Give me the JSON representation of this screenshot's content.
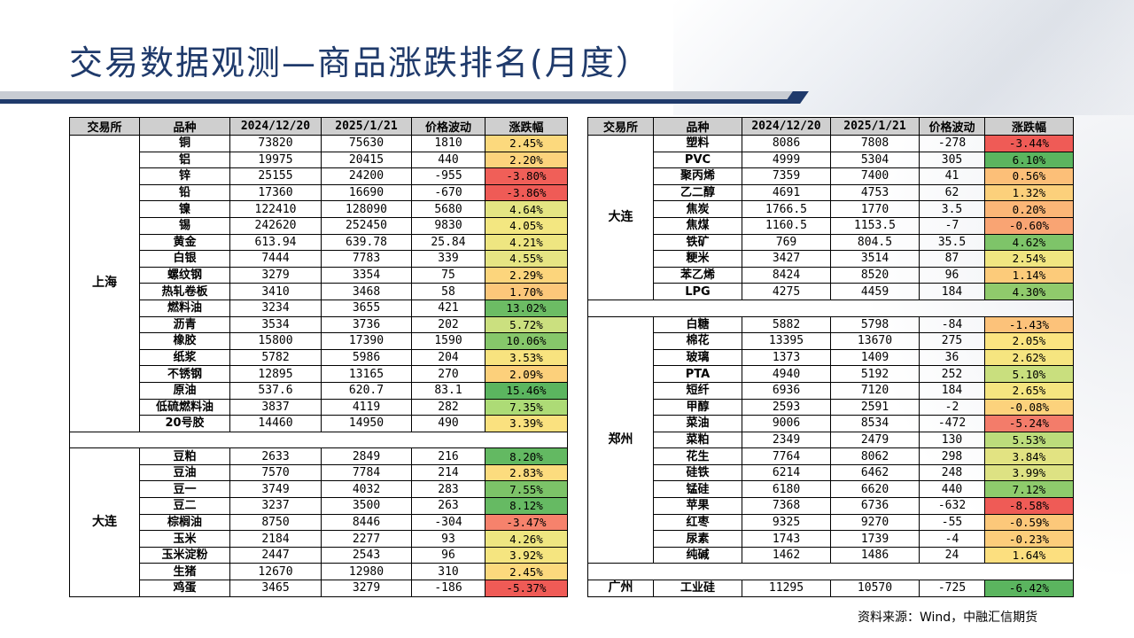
{
  "title": "交易数据观测—商品涨跌排名(月度）",
  "source": "资料来源：Wind，中融汇信期货",
  "headers": [
    "交易所",
    "品种",
    "2024/12/20",
    "2025/1/21",
    "价格波动",
    "涨跌幅"
  ],
  "colors": {
    "strong_green": "#5bb55f",
    "green": "#8ccb6f",
    "light_green": "#c6e08a",
    "yellow": "#fbe983",
    "orange": "#fcc77a",
    "salmon": "#f69a7a",
    "red": "#ef5b56",
    "header_gray": "#cfcfcf",
    "title_blue": "#1f3a6b"
  },
  "left_table": {
    "groups": [
      {
        "exchange": "上海",
        "rows": [
          {
            "name": "铜",
            "d1": "73820",
            "d2": "75630",
            "chg": "1810",
            "pct": "2.45%",
            "color": "#fcd97d"
          },
          {
            "name": "铝",
            "d1": "19975",
            "d2": "20415",
            "chg": "440",
            "pct": "2.20%",
            "color": "#fcd37c"
          },
          {
            "name": "锌",
            "d1": "25155",
            "d2": "24200",
            "chg": "-955",
            "pct": "-3.80%",
            "color": "#f05f58"
          },
          {
            "name": "铅",
            "d1": "17360",
            "d2": "16690",
            "chg": "-670",
            "pct": "-3.86%",
            "color": "#ef5b56"
          },
          {
            "name": "镍",
            "d1": "122410",
            "d2": "128090",
            "chg": "5680",
            "pct": "4.64%",
            "color": "#e4e583"
          },
          {
            "name": "锡",
            "d1": "242620",
            "d2": "252450",
            "chg": "9830",
            "pct": "4.05%",
            "color": "#f3e781"
          },
          {
            "name": "黄金",
            "d1": "613.94",
            "d2": "639.78",
            "chg": "25.84",
            "pct": "4.21%",
            "color": "#eee681"
          },
          {
            "name": "白银",
            "d1": "7444",
            "d2": "7783",
            "chg": "339",
            "pct": "4.55%",
            "color": "#e6e583"
          },
          {
            "name": "螺纹钢",
            "d1": "3279",
            "d2": "3354",
            "chg": "75",
            "pct": "2.29%",
            "color": "#fcd57c"
          },
          {
            "name": "热轧卷板",
            "d1": "3410",
            "d2": "3468",
            "chg": "58",
            "pct": "1.70%",
            "color": "#fcc77a"
          },
          {
            "name": "燃料油",
            "d1": "3234",
            "d2": "3655",
            "chg": "421",
            "pct": "13.02%",
            "color": "#6cbc64"
          },
          {
            "name": "沥青",
            "d1": "3534",
            "d2": "3736",
            "chg": "202",
            "pct": "5.72%",
            "color": "#cbe07f"
          },
          {
            "name": "橡胶",
            "d1": "15800",
            "d2": "17390",
            "chg": "1590",
            "pct": "10.06%",
            "color": "#86c76a"
          },
          {
            "name": "纸浆",
            "d1": "5782",
            "d2": "5986",
            "chg": "204",
            "pct": "3.53%",
            "color": "#f8e37f"
          },
          {
            "name": "不锈钢",
            "d1": "12895",
            "d2": "13165",
            "chg": "270",
            "pct": "2.09%",
            "color": "#fcd07b"
          },
          {
            "name": "原油",
            "d1": "537.6",
            "d2": "620.7",
            "chg": "83.1",
            "pct": "15.46%",
            "color": "#5bb55f"
          },
          {
            "name": "低硫燃料油",
            "d1": "3837",
            "d2": "4119",
            "chg": "282",
            "pct": "7.35%",
            "color": "#addb76"
          },
          {
            "name": "20号胶",
            "d1": "14460",
            "d2": "14950",
            "chg": "490",
            "pct": "3.39%",
            "color": "#fae17f"
          }
        ]
      },
      {
        "exchange": "大连",
        "rows": [
          {
            "name": "豆粕",
            "d1": "2633",
            "d2": "2849",
            "chg": "216",
            "pct": "8.20%",
            "color": "#63b962"
          },
          {
            "name": "豆油",
            "d1": "7570",
            "d2": "7784",
            "chg": "214",
            "pct": "2.83%",
            "color": "#fcdc7e"
          },
          {
            "name": "豆一",
            "d1": "3749",
            "d2": "4032",
            "chg": "283",
            "pct": "7.55%",
            "color": "#7cc368"
          },
          {
            "name": "豆二",
            "d1": "3237",
            "d2": "3500",
            "chg": "263",
            "pct": "8.12%",
            "color": "#66ba63"
          },
          {
            "name": "棕榈油",
            "d1": "8750",
            "d2": "8446",
            "chg": "-304",
            "pct": "-3.47%",
            "color": "#f6826c"
          },
          {
            "name": "玉米",
            "d1": "2184",
            "d2": "2277",
            "chg": "93",
            "pct": "4.26%",
            "color": "#eee681"
          },
          {
            "name": "玉米淀粉",
            "d1": "2447",
            "d2": "2543",
            "chg": "96",
            "pct": "3.92%",
            "color": "#f5e580"
          },
          {
            "name": "生猪",
            "d1": "12670",
            "d2": "12980",
            "chg": "310",
            "pct": "2.45%",
            "color": "#fcd97d"
          },
          {
            "name": "鸡蛋",
            "d1": "3465",
            "d2": "3279",
            "chg": "-186",
            "pct": "-5.37%",
            "color": "#ef5b56"
          }
        ]
      }
    ]
  },
  "right_table": {
    "groups": [
      {
        "exchange": "大连",
        "rows": [
          {
            "name": "塑料",
            "d1": "8086",
            "d2": "7808",
            "chg": "-278",
            "pct": "-3.44%",
            "color": "#ef5b56"
          },
          {
            "name": "PVC",
            "d1": "4999",
            "d2": "5304",
            "chg": "305",
            "pct": "6.10%",
            "color": "#5bb55f"
          },
          {
            "name": "聚丙烯",
            "d1": "7359",
            "d2": "7400",
            "chg": "41",
            "pct": "0.56%",
            "color": "#fcbf78"
          },
          {
            "name": "乙二醇",
            "d1": "4691",
            "d2": "4753",
            "chg": "62",
            "pct": "1.32%",
            "color": "#fcd07b"
          },
          {
            "name": "焦炭",
            "d1": "1766.5",
            "d2": "1770",
            "chg": "3.5",
            "pct": "0.20%",
            "color": "#fbb677"
          },
          {
            "name": "焦煤",
            "d1": "1160.5",
            "d2": "1153.5",
            "chg": "-7",
            "pct": "-0.60%",
            "color": "#f9a473"
          },
          {
            "name": "铁矿",
            "d1": "769",
            "d2": "804.5",
            "chg": "35.5",
            "pct": "4.62%",
            "color": "#7ec469"
          },
          {
            "name": "粳米",
            "d1": "3427",
            "d2": "3514",
            "chg": "87",
            "pct": "2.54%",
            "color": "#f0e681"
          },
          {
            "name": "苯乙烯",
            "d1": "8424",
            "d2": "8520",
            "chg": "96",
            "pct": "1.14%",
            "color": "#fccb7a"
          },
          {
            "name": "LPG",
            "d1": "4275",
            "d2": "4459",
            "chg": "184",
            "pct": "4.30%",
            "color": "#90ca6c"
          }
        ]
      },
      {
        "exchange": "郑州",
        "rows": [
          {
            "name": "白糖",
            "d1": "5882",
            "d2": "5798",
            "chg": "-84",
            "pct": "-1.43%",
            "color": "#fcc27a"
          },
          {
            "name": "棉花",
            "d1": "13395",
            "d2": "13670",
            "chg": "275",
            "pct": "2.05%",
            "color": "#fbe480"
          },
          {
            "name": "玻璃",
            "d1": "1373",
            "d2": "1409",
            "chg": "36",
            "pct": "2.62%",
            "color": "#f6e580"
          },
          {
            "name": "PTA",
            "d1": "4940",
            "d2": "5192",
            "chg": "252",
            "pct": "5.10%",
            "color": "#c9df7e"
          },
          {
            "name": "短纤",
            "d1": "6936",
            "d2": "7120",
            "chg": "184",
            "pct": "2.65%",
            "color": "#f5e580"
          },
          {
            "name": "甲醇",
            "d1": "2593",
            "d2": "2591",
            "chg": "-2",
            "pct": "-0.08%",
            "color": "#fcd27c"
          },
          {
            "name": "菜油",
            "d1": "9006",
            "d2": "8534",
            "chg": "-472",
            "pct": "-5.24%",
            "color": "#f37c6a"
          },
          {
            "name": "菜粕",
            "d1": "2349",
            "d2": "2479",
            "chg": "130",
            "pct": "5.53%",
            "color": "#bcdc7b"
          },
          {
            "name": "花生",
            "d1": "7764",
            "d2": "8062",
            "chg": "298",
            "pct": "3.84%",
            "color": "#e2e382"
          },
          {
            "name": "硅铁",
            "d1": "6214",
            "d2": "6462",
            "chg": "248",
            "pct": "3.99%",
            "color": "#dde283"
          },
          {
            "name": "锰硅",
            "d1": "6180",
            "d2": "6620",
            "chg": "440",
            "pct": "7.12%",
            "color": "#8ecb6c"
          },
          {
            "name": "苹果",
            "d1": "7368",
            "d2": "6736",
            "chg": "-632",
            "pct": "-8.58%",
            "color": "#ef5b56"
          },
          {
            "name": "红枣",
            "d1": "9325",
            "d2": "9270",
            "chg": "-55",
            "pct": "-0.59%",
            "color": "#fcc87a"
          },
          {
            "name": "尿素",
            "d1": "1743",
            "d2": "1739",
            "chg": "-4",
            "pct": "-0.23%",
            "color": "#fccd7b"
          },
          {
            "name": "纯碱",
            "d1": "1462",
            "d2": "1486",
            "chg": "24",
            "pct": "1.64%",
            "color": "#fcdf7f"
          }
        ]
      },
      {
        "exchange": "广州",
        "rows": [
          {
            "name": "工业硅",
            "d1": "11295",
            "d2": "10570",
            "chg": "-725",
            "pct": "-6.42%",
            "color": "#5bb55f"
          }
        ]
      }
    ]
  }
}
